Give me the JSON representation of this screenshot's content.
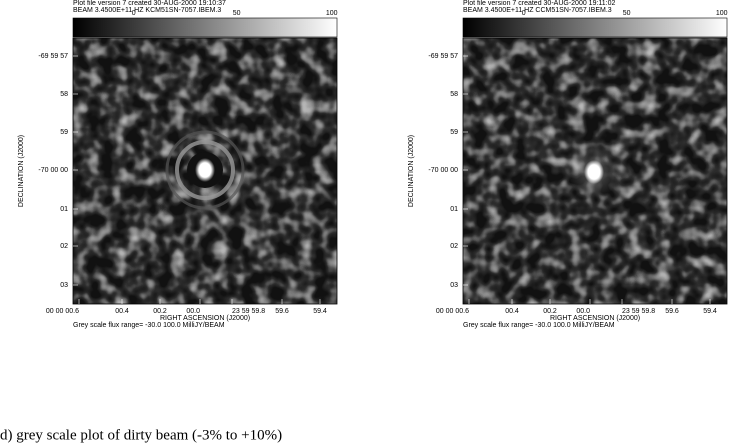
{
  "panels": [
    {
      "header": [
        "Plot file version 7  created 30-AUG-2000 19:10:37",
        "BEAM  3.4500E+11 HZ  KCM51SN-7057.IBEM.3"
      ],
      "colorbar_labels": [
        "0",
        "50",
        "100"
      ],
      "y_label": "DECLINATION (J2000)",
      "y_ticks": [
        "-69 59 57",
        "58",
        "59",
        "-70 00 00",
        "01",
        "02",
        "03"
      ],
      "x_label": "RIGHT ASCENSION (J2000)",
      "x_ticks": [
        "00 00 00.6",
        "00.4",
        "00.2",
        "00.0",
        "23 59 59.8",
        "59.6",
        "59.4"
      ],
      "footer": "Grey scale flux range= -30.0 100.0 MilliJY/BEAM"
    },
    {
      "header": [
        "Plot file version 7  created 30-AUG-2000 19:11:02",
        "BEAM  3.4500E+11 HZ  CCM51SN-7057.IBEM.3"
      ],
      "colorbar_labels": [
        "0",
        "50",
        "100"
      ],
      "y_label": "DECLINATION (J2000)",
      "y_ticks": [
        "-69 59 57",
        "58",
        "59",
        "-70 00 00",
        "01",
        "02",
        "03"
      ],
      "x_label": "RIGHT ASCENSION (J2000)",
      "x_ticks": [
        "00 00 00.6",
        "00.4",
        "00.2",
        "00.0",
        "23 59 59.8",
        "59.6",
        "59.4"
      ],
      "footer": "Grey scale flux range= -30.0 100.0 MilliJY/BEAM"
    }
  ],
  "caption": "d) grey scale plot of dirty beam (-3% to +10%)"
}
